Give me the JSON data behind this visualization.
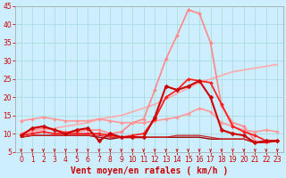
{
  "xlabel": "Vent moyen/en rafales ( km/h )",
  "bg_color": "#cceeff",
  "grid_color": "#aadddd",
  "xlim": [
    -0.5,
    23.5
  ],
  "ylim": [
    5,
    45
  ],
  "yticks": [
    5,
    10,
    15,
    20,
    25,
    30,
    35,
    40,
    45
  ],
  "xticks": [
    0,
    1,
    2,
    3,
    4,
    5,
    6,
    7,
    8,
    9,
    10,
    11,
    12,
    13,
    14,
    15,
    16,
    17,
    18,
    19,
    20,
    21,
    22,
    23
  ],
  "series": [
    {
      "comment": "light pink diagonal trend line (no markers)",
      "y": [
        10,
        10.5,
        11,
        11.5,
        12,
        12.5,
        13,
        14,
        14.5,
        15,
        16,
        17,
        18,
        19.5,
        21,
        22.5,
        24,
        25,
        26,
        27,
        27.5,
        28,
        28.5,
        29
      ],
      "color": "#ffaaaa",
      "lw": 1.2,
      "marker": null,
      "ms": 0,
      "zorder": 2
    },
    {
      "comment": "medium pink flat-ish line with diamond markers",
      "y": [
        13.5,
        14,
        14.5,
        14,
        13.5,
        13.5,
        13.5,
        14,
        13.5,
        13,
        13,
        13,
        13.5,
        14,
        14.5,
        15.5,
        17,
        16,
        13,
        12,
        11,
        10.5,
        11,
        10.5
      ],
      "color": "#ff9999",
      "lw": 1.2,
      "marker": "D",
      "ms": 2.0,
      "zorder": 4
    },
    {
      "comment": "lighter pink big peak line (rafales max)",
      "y": [
        10,
        11,
        11.5,
        11,
        10.5,
        10.5,
        11,
        11,
        10,
        10.5,
        13,
        14,
        22,
        30.5,
        37,
        44,
        43,
        35,
        17.5,
        13,
        12,
        8,
        7.5,
        8
      ],
      "color": "#ff8888",
      "lw": 1.2,
      "marker": "D",
      "ms": 2.0,
      "zorder": 3
    },
    {
      "comment": "dark red flat near bottom (no markers)",
      "y": [
        9,
        9.5,
        9.5,
        9.5,
        9.5,
        9.5,
        9.5,
        9,
        8.5,
        9,
        9,
        9,
        9,
        9,
        9,
        9,
        9,
        8.5,
        8.5,
        8.5,
        8.5,
        7.5,
        8,
        8
      ],
      "color": "#990000",
      "lw": 1.0,
      "marker": null,
      "ms": 0,
      "zorder": 5
    },
    {
      "comment": "dark red flat near bottom 2 (no markers)",
      "y": [
        9,
        9.5,
        9.5,
        9.5,
        9.5,
        9.5,
        9.5,
        9.5,
        9,
        9,
        9,
        9,
        9,
        9,
        9.5,
        9.5,
        9.5,
        9,
        8.5,
        8.5,
        8.5,
        7.5,
        7.5,
        8
      ],
      "color": "#cc2222",
      "lw": 0.9,
      "marker": null,
      "ms": 0,
      "zorder": 5
    },
    {
      "comment": "medium red with markers - medium peak",
      "y": [
        9.5,
        10,
        10.5,
        10,
        10,
        10,
        10,
        10,
        9.5,
        9,
        9.5,
        10,
        14,
        20,
        22,
        25,
        24.5,
        24,
        18,
        12,
        10.5,
        9.5,
        8,
        8
      ],
      "color": "#ff2222",
      "lw": 1.3,
      "marker": "D",
      "ms": 2.0,
      "zorder": 6
    },
    {
      "comment": "bright red with markers - main visible line",
      "y": [
        9.5,
        11.5,
        12,
        11,
        10,
        11,
        11.5,
        8,
        10,
        9,
        9,
        9,
        14.5,
        23,
        22,
        23,
        24.5,
        20,
        11,
        10,
        9.5,
        7.5,
        8,
        8
      ],
      "color": "#cc0000",
      "lw": 1.5,
      "marker": "D",
      "ms": 2.5,
      "zorder": 7
    }
  ],
  "arrow_color": "#cc0000",
  "xlabel_color": "#cc0000",
  "xlabel_fontsize": 7,
  "tick_color": "#cc0000",
  "tick_fontsize": 5.5
}
